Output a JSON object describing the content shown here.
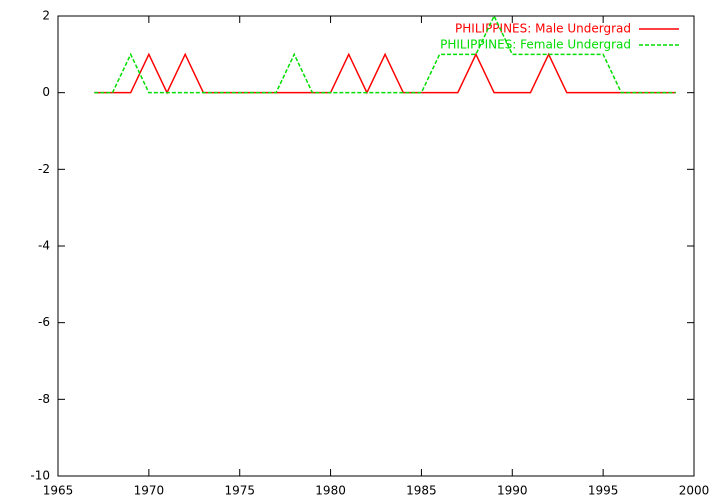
{
  "chart_data": {
    "type": "line",
    "x": [
      1967,
      1968,
      1969,
      1970,
      1971,
      1972,
      1973,
      1974,
      1975,
      1976,
      1977,
      1978,
      1979,
      1980,
      1981,
      1982,
      1983,
      1984,
      1985,
      1986,
      1987,
      1988,
      1989,
      1990,
      1991,
      1992,
      1993,
      1994,
      1995,
      1996,
      1997,
      1998,
      1999
    ],
    "series": [
      {
        "name": "PHILIPPINES: Male Undergrad",
        "color": "#ff0000",
        "dash": false,
        "values": [
          0,
          0,
          0,
          1,
          0,
          1,
          0,
          0,
          0,
          0,
          0,
          0,
          0,
          0,
          1,
          0,
          1,
          0,
          0,
          0,
          0,
          1,
          0,
          0,
          0,
          1,
          0,
          0,
          0,
          0,
          0,
          0,
          0
        ]
      },
      {
        "name": "PHILIPPINES: Female Undergrad",
        "color": "#00dd00",
        "dash": true,
        "values": [
          0,
          0,
          1,
          0,
          0,
          0,
          0,
          0,
          0,
          0,
          0,
          1,
          0,
          0,
          0,
          0,
          0,
          0,
          0,
          1,
          1,
          1,
          2,
          1,
          1,
          1,
          1,
          1,
          1,
          0,
          0,
          0,
          0
        ]
      }
    ],
    "xlim": [
      1965,
      2000
    ],
    "xticks": [
      1965,
      1970,
      1975,
      1980,
      1985,
      1990,
      1995,
      2000
    ],
    "ylim": [
      -10,
      2
    ],
    "yticks": [
      -10,
      -8,
      -6,
      -4,
      -2,
      0,
      2
    ],
    "legend": "top-right"
  }
}
